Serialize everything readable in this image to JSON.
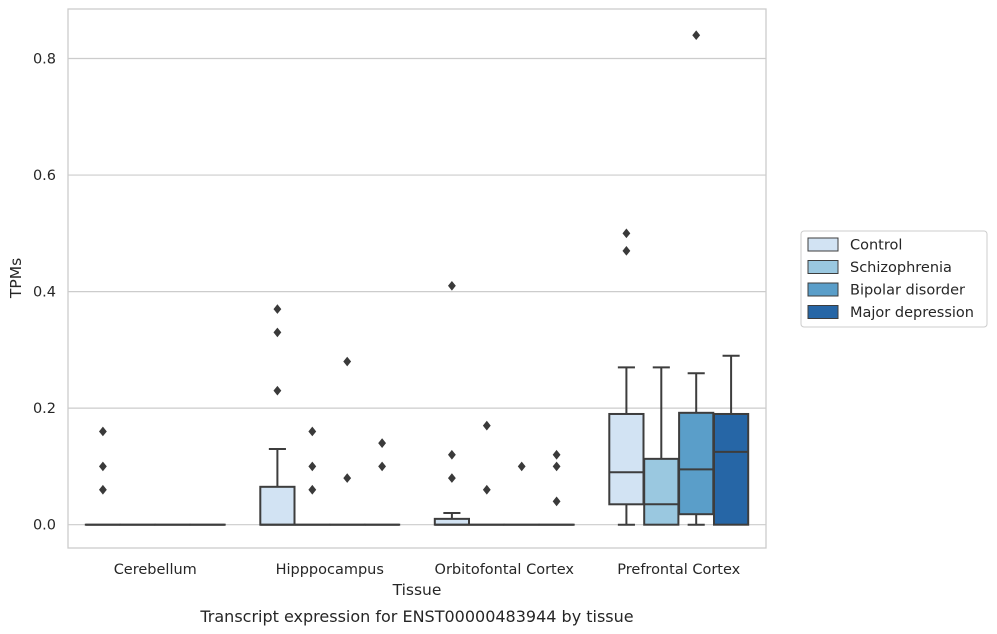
{
  "caption": "Transcript expression for ENST00000483944 by tissue",
  "chart_data": {
    "type": "box",
    "title": "",
    "xlabel": "Tissue",
    "ylabel": "TPMs",
    "ylim": [
      -0.04,
      0.885
    ],
    "yticks": [
      0.0,
      0.2,
      0.4,
      0.6,
      0.8
    ],
    "ytick_labels": [
      "0.0",
      "0.2",
      "0.4",
      "0.6",
      "0.8"
    ],
    "grid": "horizontal",
    "legend_position": "right",
    "categories": [
      "Cerebellum",
      "Hipppocampus",
      "Orbitofontal Cortex",
      "Prefrontal Cortex"
    ],
    "series": [
      {
        "name": "Control",
        "color": "#d2e3f3",
        "boxes": [
          {
            "min": 0,
            "q1": 0,
            "median": 0,
            "q3": 0,
            "max": 0,
            "outliers": [
              0.16,
              0.1,
              0.06
            ]
          },
          {
            "min": 0,
            "q1": 0,
            "median": 0,
            "q3": 0.065,
            "max": 0.13,
            "outliers": [
              0.37,
              0.33,
              0.23
            ]
          },
          {
            "min": 0,
            "q1": 0,
            "median": 0,
            "q3": 0.01,
            "max": 0.02,
            "outliers": [
              0.41,
              0.12,
              0.08
            ]
          },
          {
            "min": 0,
            "q1": 0.035,
            "median": 0.09,
            "q3": 0.19,
            "max": 0.27,
            "outliers": [
              0.5,
              0.47
            ]
          }
        ]
      },
      {
        "name": "Schizophrenia",
        "color": "#9ac8e0",
        "boxes": [
          {
            "min": 0,
            "q1": 0,
            "median": 0,
            "q3": 0,
            "max": 0,
            "outliers": []
          },
          {
            "min": 0,
            "q1": 0,
            "median": 0,
            "q3": 0,
            "max": 0,
            "outliers": [
              0.16,
              0.1,
              0.06
            ]
          },
          {
            "min": 0,
            "q1": 0,
            "median": 0,
            "q3": 0,
            "max": 0,
            "outliers": [
              0.17,
              0.06
            ]
          },
          {
            "min": 0,
            "q1": 0,
            "median": 0.035,
            "q3": 0.113,
            "max": 0.27,
            "outliers": []
          }
        ]
      },
      {
        "name": "Bipolar disorder",
        "color": "#5a9ec9",
        "boxes": [
          {
            "min": 0,
            "q1": 0,
            "median": 0,
            "q3": 0,
            "max": 0,
            "outliers": []
          },
          {
            "min": 0,
            "q1": 0,
            "median": 0,
            "q3": 0,
            "max": 0,
            "outliers": [
              0.28,
              0.08
            ]
          },
          {
            "min": 0,
            "q1": 0,
            "median": 0,
            "q3": 0,
            "max": 0,
            "outliers": [
              0.1
            ]
          },
          {
            "min": 0,
            "q1": 0.018,
            "median": 0.095,
            "q3": 0.192,
            "max": 0.26,
            "outliers": [
              0.84
            ]
          }
        ]
      },
      {
        "name": "Major depression",
        "color": "#2666a6",
        "boxes": [
          {
            "min": 0,
            "q1": 0,
            "median": 0,
            "q3": 0,
            "max": 0,
            "outliers": []
          },
          {
            "min": 0,
            "q1": 0,
            "median": 0,
            "q3": 0,
            "max": 0,
            "outliers": [
              0.14,
              0.1
            ]
          },
          {
            "min": 0,
            "q1": 0,
            "median": 0,
            "q3": 0,
            "max": 0,
            "outliers": [
              0.12,
              0.1,
              0.04
            ]
          },
          {
            "min": 0,
            "q1": 0,
            "median": 0.125,
            "q3": 0.19,
            "max": 0.29,
            "outliers": []
          }
        ]
      }
    ]
  }
}
